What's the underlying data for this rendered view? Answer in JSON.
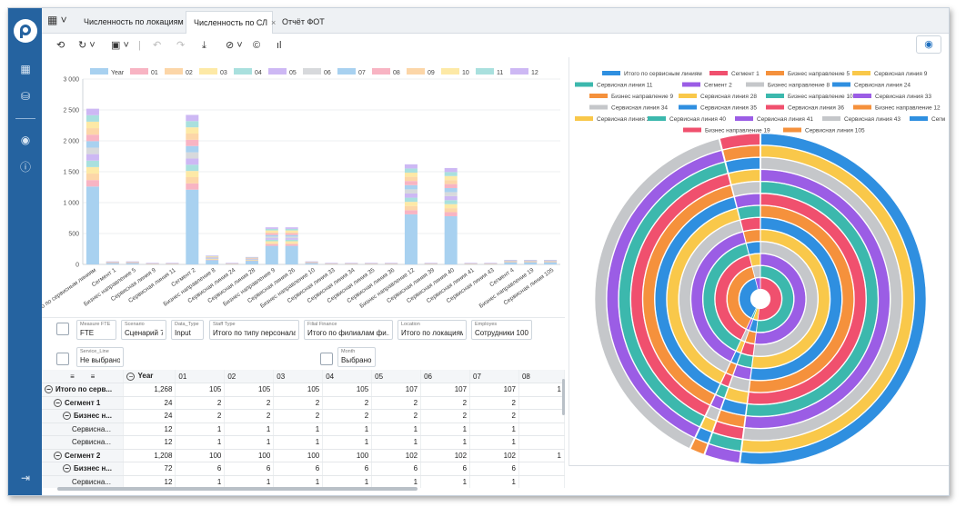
{
  "tabs": [
    {
      "label": "Численность по локациям"
    },
    {
      "label": "Численность по СЛ",
      "close": "×"
    },
    {
      "label": "Отчёт ФОТ"
    }
  ],
  "toolbar": {
    "icons": [
      "history-icon",
      "refresh-icon",
      "save-icon",
      "undo-icon",
      "redo-icon",
      "download-icon",
      "clear-filter-icon",
      "currency-icon",
      "chart-icon",
      "eye-icon"
    ]
  },
  "chart_data": [
    {
      "type": "bar",
      "stacked": true,
      "legend": [
        "Year",
        "01",
        "02",
        "03",
        "04",
        "05",
        "06",
        "07",
        "08",
        "09",
        "10",
        "11",
        "12"
      ],
      "colors": [
        "#a8d1f0",
        "#f8b4c3",
        "#fcd6a8",
        "#fde9a6",
        "#a9e0de",
        "#cdb8f4",
        "#d7d9dc",
        "#a8d1f0",
        "#f8b4c3",
        "#fcd6a8",
        "#fde9a6",
        "#a9e0de",
        "#cdb8f4"
      ],
      "ylim": [
        0,
        3000
      ],
      "yticks": [
        "3 000",
        "2 500",
        "2 000",
        "1 500",
        "1 000",
        "500",
        "0"
      ],
      "categories": [
        "Итого по сервисным линиям",
        "Сегмент 1",
        "Бизнес направление 5",
        "Сервисная линия 9",
        "Сервисная линия 11",
        "Сегмент 2",
        "Бизнес направление 8",
        "Сервисная линия 24",
        "Сервисная линия 28",
        "Бизнес направление 9",
        "Сервисная линия 26",
        "Бизнес направление 10",
        "Сервисная линия 33",
        "Сервисная линия 34",
        "Сервисная линия 35",
        "Сервисная линия 36",
        "Бизнес направление 12",
        "Сервисная линия 39",
        "Сервисная линия 40",
        "Сервисная линия 41",
        "Сервисная линия 43",
        "Сегмент 4",
        "Бизнес направление 19",
        "Сервисная линия 105"
      ],
      "values": [
        2520,
        48,
        48,
        24,
        24,
        2420,
        144,
        24,
        120,
        600,
        600,
        48,
        24,
        24,
        24,
        24,
        1620,
        24,
        1560,
        24,
        24,
        72,
        72,
        72
      ]
    },
    {
      "type": "pie",
      "subtype": "multi-ring sunburst",
      "legend": [
        "Итого по сервисным линиям",
        "Сегмент 1",
        "Бизнес направление 5",
        "Сервисная линия 9",
        "Сервисная линия 11",
        "Сегмент 2",
        "Бизнес направление 8",
        "Сервисная линия 24",
        "Бизнес направление 9",
        "Сервисная линия 28",
        "Бизнес направление 10",
        "Сервисная линия 33",
        "Сервисная линия 34",
        "Сервисная линия 35",
        "Сервисная линия 36",
        "Бизнес направление 12",
        "Сервисная линия 39",
        "Сервисная линия 40",
        "Сервисная линия 41",
        "Сервисная линия 43",
        "Сегм",
        "Бизнес направление 19",
        "Сервисная линия 105"
      ],
      "colors": [
        "#2f8fe0",
        "#f0506e",
        "#f5913c",
        "#f9c84a",
        "#3cb8ad",
        "#9b5de5",
        "#c5c7ca",
        "#2f8fe0",
        "#f5913c",
        "#f9c84a",
        "#3cb8ad",
        "#9b5de5",
        "#c5c7ca",
        "#2f8fe0",
        "#f0506e",
        "#f5913c",
        "#f9c84a",
        "#3cb8ad",
        "#9b5de5",
        "#c5c7ca",
        "#2f8fe0",
        "#f0506e",
        "#f5913c"
      ],
      "rings": 13
    }
  ],
  "pivot_fields": [
    {
      "label": "Measure FTE",
      "value": "FTE"
    },
    {
      "label": "Scenario",
      "value": "Сценарий 7"
    },
    {
      "label": "Data_Type",
      "value": "Input"
    },
    {
      "label": "Staff Type",
      "value": "Итого по типу персонала"
    },
    {
      "label": "Filial Finance",
      "value": "Итого по филиалам фи..."
    },
    {
      "label": "Location",
      "value": "Итого по локациям"
    },
    {
      "label": "Employes",
      "value": "Сотрудники 100"
    },
    {
      "label": "Service_Line",
      "value": "Не выбрано"
    },
    {
      "label": "Month",
      "value": "Выбрано:"
    }
  ],
  "pivot": {
    "corner": "≡",
    "columns": [
      "Year",
      "01",
      "02",
      "03",
      "04",
      "05",
      "06",
      "07",
      "08"
    ],
    "rows": [
      {
        "label": "Итого по серв...",
        "level": 0,
        "toggle": "−",
        "bold": true,
        "values": [
          "1,268",
          "105",
          "105",
          "105",
          "105",
          "107",
          "107",
          "107",
          "1"
        ]
      },
      {
        "label": "Сегмент 1",
        "level": 1,
        "toggle": "−",
        "bold": true,
        "values": [
          "24",
          "2",
          "2",
          "2",
          "2",
          "2",
          "2",
          "2",
          ""
        ]
      },
      {
        "label": "Бизнес н...",
        "level": 2,
        "toggle": "−",
        "bold": true,
        "values": [
          "24",
          "2",
          "2",
          "2",
          "2",
          "2",
          "2",
          "2",
          ""
        ]
      },
      {
        "label": "Сервисна...",
        "level": 3,
        "toggle": "",
        "bold": false,
        "values": [
          "12",
          "1",
          "1",
          "1",
          "1",
          "1",
          "1",
          "1",
          ""
        ]
      },
      {
        "label": "Сервисна...",
        "level": 3,
        "toggle": "",
        "bold": false,
        "values": [
          "12",
          "1",
          "1",
          "1",
          "1",
          "1",
          "1",
          "1",
          ""
        ]
      },
      {
        "label": "Сегмент 2",
        "level": 1,
        "toggle": "−",
        "bold": true,
        "values": [
          "1,208",
          "100",
          "100",
          "100",
          "100",
          "102",
          "102",
          "102",
          "1"
        ]
      },
      {
        "label": "Бизнес н...",
        "level": 2,
        "toggle": "−",
        "bold": true,
        "values": [
          "72",
          "6",
          "6",
          "6",
          "6",
          "6",
          "6",
          "6",
          ""
        ]
      },
      {
        "label": "Сервисна...",
        "level": 3,
        "toggle": "",
        "bold": false,
        "values": [
          "12",
          "1",
          "1",
          "1",
          "1",
          "1",
          "1",
          "1",
          ""
        ]
      }
    ]
  }
}
